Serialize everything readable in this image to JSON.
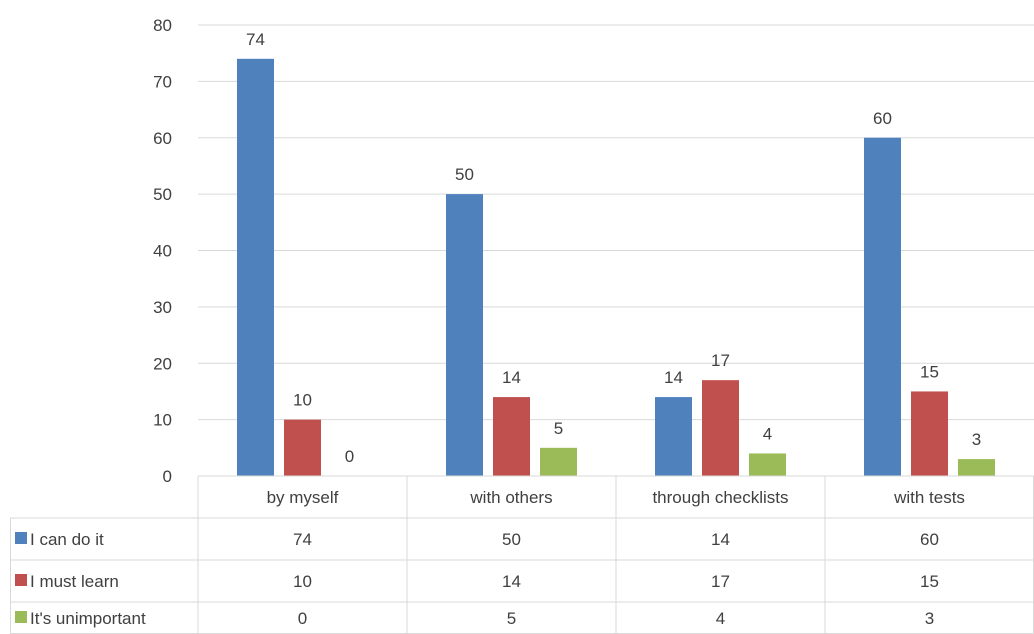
{
  "chart_data": {
    "type": "bar",
    "categories": [
      "by myself",
      "with others",
      "through checklists",
      "with tests"
    ],
    "series": [
      {
        "name": "I can do it",
        "values": [
          74,
          50,
          14,
          60
        ],
        "color": "#4F81BD"
      },
      {
        "name": "I must learn",
        "values": [
          10,
          14,
          17,
          15
        ],
        "color": "#C0504D"
      },
      {
        "name": "It's unimportant",
        "values": [
          0,
          5,
          4,
          3
        ],
        "color": "#9BBB59"
      }
    ],
    "ylim": [
      0,
      80
    ],
    "yticks": [
      0,
      10,
      20,
      30,
      40,
      50,
      60,
      70,
      80
    ],
    "grid": true,
    "data_table": true,
    "legend": "data-table-left"
  }
}
